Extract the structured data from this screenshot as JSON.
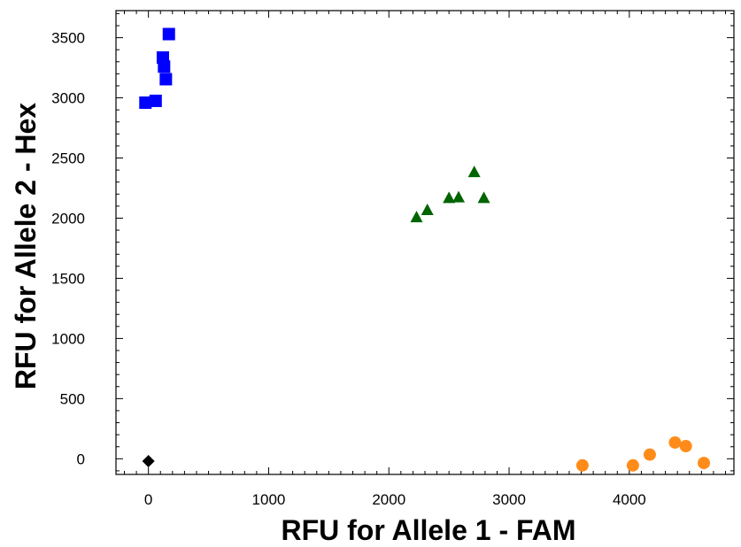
{
  "chart_data": {
    "type": "scatter",
    "title": "",
    "xlabel": "RFU for Allele 1 - FAM",
    "ylabel": "RFU for Allele 2 - Hex",
    "xlim": [
      -270,
      4870
    ],
    "ylim": [
      -130,
      3725
    ],
    "xticks": [
      0,
      1000,
      2000,
      3000,
      4000
    ],
    "xtick_labels": [
      "0",
      "1000",
      "2000",
      "3000",
      "4000"
    ],
    "yticks": [
      0,
      500,
      1000,
      1500,
      2000,
      2500,
      3000,
      3500
    ],
    "ytick_labels": [
      "0",
      "500",
      "1000",
      "1500",
      "2000",
      "2500",
      "3000",
      "3500"
    ],
    "grid": false,
    "legend": "none",
    "series": [
      {
        "marker": "square",
        "color": "#0000ff",
        "points": [
          {
            "x": -25,
            "y": 2960
          },
          {
            "x": 60,
            "y": 2975
          },
          {
            "x": 120,
            "y": 3335
          },
          {
            "x": 130,
            "y": 3260
          },
          {
            "x": 145,
            "y": 3155
          },
          {
            "x": 170,
            "y": 3530
          }
        ]
      },
      {
        "marker": "triangle",
        "color": "#006400",
        "points": [
          {
            "x": 2230,
            "y": 2010
          },
          {
            "x": 2320,
            "y": 2070
          },
          {
            "x": 2500,
            "y": 2170
          },
          {
            "x": 2580,
            "y": 2175
          },
          {
            "x": 2710,
            "y": 2385
          },
          {
            "x": 2790,
            "y": 2170
          }
        ]
      },
      {
        "marker": "circle",
        "color": "#ff8c1a",
        "points": [
          {
            "x": 3610,
            "y": -55
          },
          {
            "x": 4030,
            "y": -55
          },
          {
            "x": 4170,
            "y": 35
          },
          {
            "x": 4380,
            "y": 135
          },
          {
            "x": 4470,
            "y": 105
          },
          {
            "x": 4620,
            "y": -35
          }
        ]
      },
      {
        "marker": "diamond",
        "color": "#000000",
        "points": [
          {
            "x": 0,
            "y": -20
          }
        ]
      }
    ]
  }
}
